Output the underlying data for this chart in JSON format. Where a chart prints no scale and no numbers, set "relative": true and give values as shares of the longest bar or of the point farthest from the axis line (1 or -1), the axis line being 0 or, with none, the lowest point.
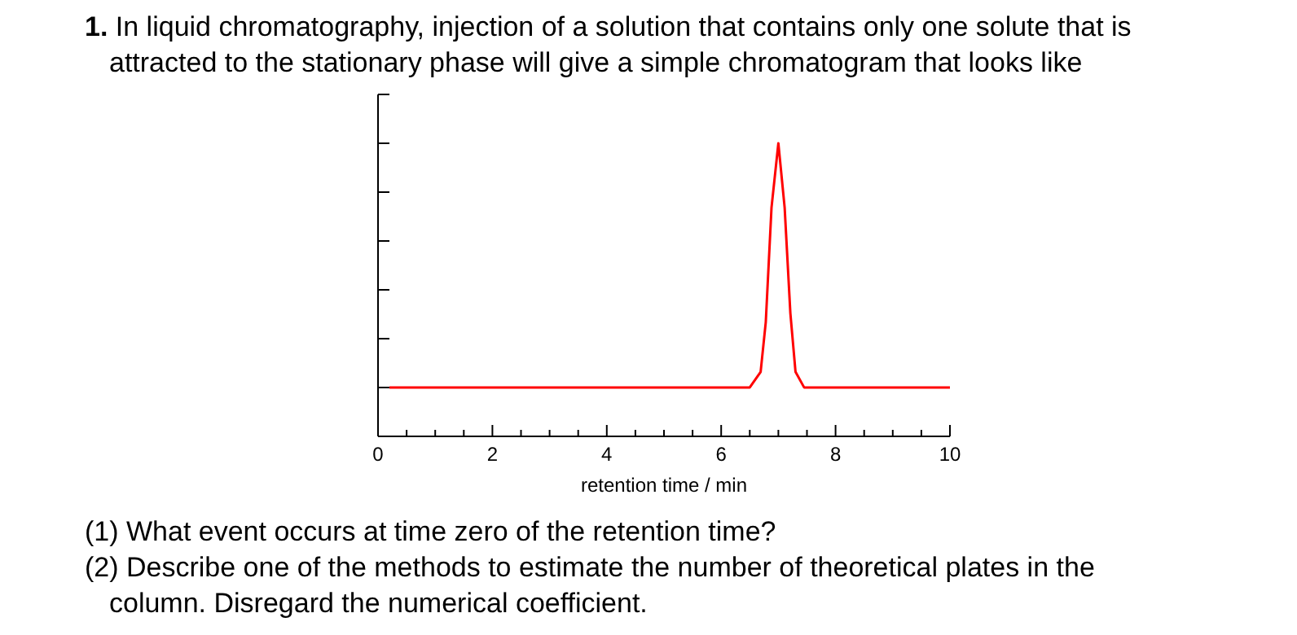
{
  "chart_data": {
    "type": "line",
    "title": "1. In liquid chromatography, injection of a solution that contains only one solute that is attracted to the stationary phase will give a simple chromatogram that looks like",
    "xlabel": "retention time / min",
    "relative": true,
    "x": [
      0.2,
      6.5,
      6.69,
      6.78,
      6.88,
      7.0,
      7.11,
      7.21,
      7.3,
      7.45,
      10
    ],
    "series": [
      {
        "color": "#ff0000",
        "values": [
          0.167,
          0.167,
          0.22,
          0.39,
          0.78,
          1,
          0.78,
          0.42,
          0.22,
          0.167,
          0.167
        ]
      }
    ],
    "xlim": [
      0,
      10
    ],
    "xticks": [
      0,
      {
        "value": 0.5,
        "label": null
      },
      {
        "value": 1,
        "label": null
      },
      {
        "value": 1.5,
        "label": null
      },
      2,
      {
        "value": 2.5,
        "label": null
      },
      {
        "value": 3,
        "label": null
      },
      {
        "value": 3.5,
        "label": null
      },
      4,
      {
        "value": 4.5,
        "label": null
      },
      {
        "value": 5,
        "label": null
      },
      {
        "value": 5.5,
        "label": null
      },
      6,
      {
        "value": 6.5,
        "label": null
      },
      {
        "value": 7,
        "label": null
      },
      {
        "value": 7.5,
        "label": null
      },
      8,
      {
        "value": 8.5,
        "label": null
      },
      {
        "value": 9,
        "label": null
      },
      {
        "value": 9.5,
        "label": null
      },
      10
    ],
    "annotations": [
      "(1) What event occurs at time zero of the retention time?",
      "(2) Describe one of the methods to estimate the number of theoretical plates in the column. Disregard the numerical coefficient."
    ],
    "grid": false,
    "marker": "none",
    "line_style": "solid"
  }
}
